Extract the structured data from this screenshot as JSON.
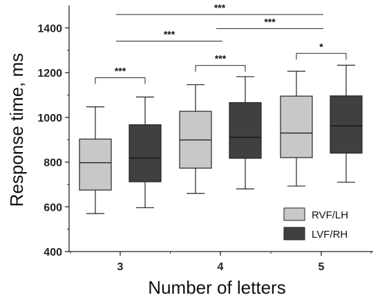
{
  "chart_data": {
    "type": "boxplot",
    "xlabel": "Number of letters",
    "ylabel": "Response time, ms",
    "ylim": [
      400,
      1500
    ],
    "yticks": [
      400,
      600,
      800,
      1000,
      1200,
      1400
    ],
    "categories": [
      "3",
      "4",
      "5"
    ],
    "series": [
      {
        "name": "RVF/LH",
        "color": "#c8c8c8",
        "boxes": [
          {
            "whisker_low": 570,
            "q1": 675,
            "median": 797,
            "q3": 903,
            "whisker_high": 1047
          },
          {
            "whisker_low": 660,
            "q1": 773,
            "median": 899,
            "q3": 1027,
            "whisker_high": 1146
          },
          {
            "whisker_low": 693,
            "q1": 820,
            "median": 930,
            "q3": 1095,
            "whisker_high": 1206
          }
        ]
      },
      {
        "name": "LVF/RH",
        "color": "#404040",
        "boxes": [
          {
            "whisker_low": 596,
            "q1": 712,
            "median": 818,
            "q3": 967,
            "whisker_high": 1091
          },
          {
            "whisker_low": 680,
            "q1": 817,
            "median": 911,
            "q3": 1066,
            "whisker_high": 1182
          },
          {
            "whisker_low": 710,
            "q1": 840,
            "median": 962,
            "q3": 1096,
            "whisker_high": 1233
          }
        ]
      }
    ],
    "significance": [
      {
        "from": [
          0,
          0
        ],
        "to": [
          0,
          1
        ],
        "y": 1177,
        "label": "***",
        "style": "bracket"
      },
      {
        "from": [
          1,
          0
        ],
        "to": [
          1,
          1
        ],
        "y": 1232,
        "label": "***",
        "style": "bracket"
      },
      {
        "from": [
          2,
          0
        ],
        "to": [
          2,
          1
        ],
        "y": 1286,
        "label": "*",
        "style": "bracket"
      },
      {
        "from": [
          0,
          -1
        ],
        "to": [
          1,
          -1
        ],
        "y": 1341,
        "label": "***",
        "style": "line"
      },
      {
        "from": [
          1,
          -1
        ],
        "to": [
          2,
          -1
        ],
        "y": 1397,
        "label": "***",
        "style": "line"
      },
      {
        "from": [
          0,
          -1
        ],
        "to": [
          2,
          -1
        ],
        "y": 1460,
        "label": "***",
        "style": "line"
      }
    ],
    "legend": {
      "position": "bottom-right",
      "entries": [
        "RVF/LH",
        "LVF/RH"
      ]
    },
    "grid": false
  }
}
